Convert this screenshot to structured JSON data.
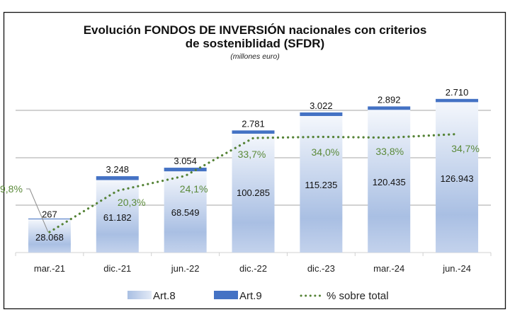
{
  "chart_data": {
    "type": "bar",
    "title": "Evolución FONDOS DE INVERSIÓN nacionales con criterios",
    "title_line2": "de sosteniblidad (SFDR)",
    "subtitle": "(millones euro)",
    "categories": [
      "mar.-21",
      "dic.-21",
      "jun.-22",
      "dic.-22",
      "dic.-23",
      "mar.-24",
      "jun.-24"
    ],
    "stacked": true,
    "ylim": [
      0,
      140000
    ],
    "gridlines": [
      0,
      40000,
      80000,
      120000
    ],
    "grid": true,
    "legend_position": "bottom",
    "series": [
      {
        "name": "Art.8",
        "type": "bar",
        "color": "#a9bfe3",
        "values": [
          28068,
          61182,
          68549,
          100285,
          115235,
          120435,
          126943
        ],
        "labels": [
          "28.068",
          "61.182",
          "68.549",
          "100.285",
          "115.235",
          "120.435",
          "126.943"
        ]
      },
      {
        "name": "Art.9",
        "type": "bar",
        "color": "#4472c4",
        "values": [
          267,
          3248,
          3054,
          2781,
          3022,
          2892,
          2710
        ],
        "labels": [
          "267",
          "3.248",
          "3.054",
          "2.781",
          "3.022",
          "2.892",
          "2.710"
        ]
      },
      {
        "name": "% sobre total",
        "type": "line",
        "style": "dotted",
        "color": "#548235",
        "axis": "secondary",
        "values": [
          9.8,
          20.3,
          24.1,
          33.7,
          34.0,
          33.8,
          34.7
        ],
        "labels": [
          "9,8%",
          "20,3%",
          "24,1%",
          "33,7%",
          "34,0%",
          "33,8%",
          "34,7%"
        ]
      }
    ]
  }
}
